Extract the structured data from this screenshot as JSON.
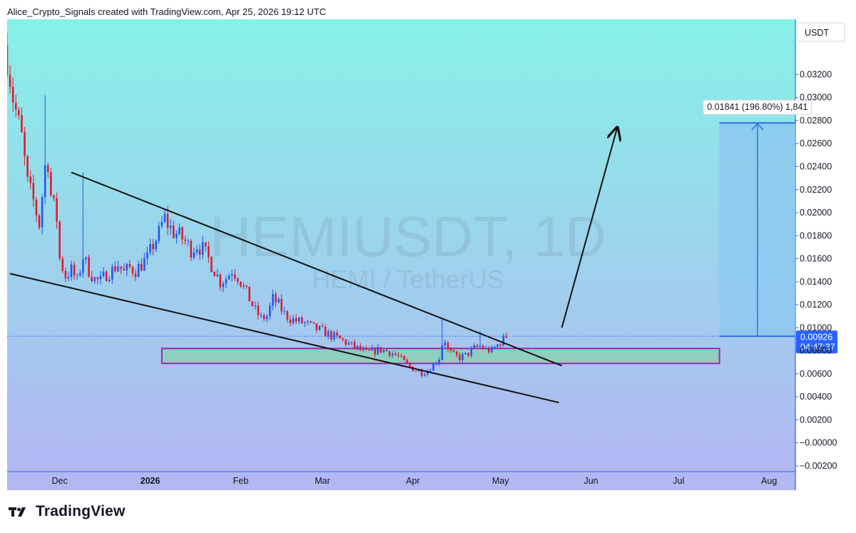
{
  "header": {
    "attribution": "Alice_Crypto_Signals created with TradingView.com, Apr 25, 2026 19:12 UTC"
  },
  "footer": {
    "brand": "TradingView"
  },
  "chart_data": {
    "type": "candlestick",
    "symbol_watermark": "HEMIUSDT, 1D",
    "symbol_subtitle": "HEMI / TetherUS",
    "currency_label": "USDT",
    "price_axis": {
      "ticks": [
        "0.03200",
        "0.03000",
        "0.02800",
        "0.02600",
        "0.02400",
        "0.02200",
        "0.02000",
        "0.01800",
        "0.01600",
        "0.01400",
        "0.01200",
        "0.01000",
        "0.00800",
        "0.00600",
        "0.00400",
        "0.00200",
        "−0.00000",
        "−0.00200"
      ],
      "tick_values": [
        0.032,
        0.03,
        0.028,
        0.026,
        0.024,
        0.022,
        0.02,
        0.018,
        0.016,
        0.014,
        0.012,
        0.01,
        0.008,
        0.006,
        0.004,
        0.002,
        0.0,
        -0.002
      ],
      "ylim": [
        -0.0025,
        0.0368
      ]
    },
    "time_axis": {
      "labels": [
        {
          "text": "Dec",
          "date": "2025-12-01",
          "bold": false
        },
        {
          "text": "2026",
          "date": "2026-01-01",
          "bold": true
        },
        {
          "text": "Feb",
          "date": "2026-02-01",
          "bold": false
        },
        {
          "text": "Mar",
          "date": "2026-03-01",
          "bold": false
        },
        {
          "text": "Apr",
          "date": "2026-04-01",
          "bold": false
        },
        {
          "text": "May",
          "date": "2026-05-01",
          "bold": false
        },
        {
          "text": "Jun",
          "date": "2026-06-01",
          "bold": false
        },
        {
          "text": "Jul",
          "date": "2026-07-01",
          "bold": false
        },
        {
          "text": "Aug",
          "date": "2026-08-01",
          "bold": false
        }
      ],
      "xlim": [
        "2025-11-13",
        "2026-08-10"
      ]
    },
    "last_price": {
      "value": "0.00926",
      "price": 0.00926,
      "countdown": "04:47:37"
    },
    "price_path": [
      [
        "2025-11-13",
        0.0335
      ],
      [
        "2025-11-15",
        0.03
      ],
      [
        "2025-11-18",
        0.0265
      ],
      [
        "2025-11-20",
        0.0225
      ],
      [
        "2025-11-22",
        0.021
      ],
      [
        "2025-11-24",
        0.019
      ],
      [
        "2025-11-26",
        0.024
      ],
      [
        "2025-11-27",
        0.0245
      ],
      [
        "2025-11-28",
        0.0215
      ],
      [
        "2025-11-30",
        0.0195
      ],
      [
        "2025-12-01",
        0.016
      ],
      [
        "2025-12-03",
        0.0145
      ],
      [
        "2025-12-05",
        0.015
      ],
      [
        "2025-12-07",
        0.014
      ],
      [
        "2025-12-09",
        0.0162
      ],
      [
        "2025-12-11",
        0.015
      ],
      [
        "2025-12-13",
        0.0142
      ],
      [
        "2025-12-15",
        0.014
      ],
      [
        "2025-12-17",
        0.0147
      ],
      [
        "2025-12-19",
        0.015
      ],
      [
        "2025-12-21",
        0.0155
      ],
      [
        "2025-12-23",
        0.0148
      ],
      [
        "2025-12-25",
        0.0152
      ],
      [
        "2025-12-27",
        0.015
      ],
      [
        "2025-12-29",
        0.0155
      ],
      [
        "2025-12-31",
        0.016
      ],
      [
        "2026-01-02",
        0.0172
      ],
      [
        "2026-01-04",
        0.0182
      ],
      [
        "2026-01-05",
        0.019
      ],
      [
        "2026-01-06",
        0.0195
      ],
      [
        "2026-01-07",
        0.019
      ],
      [
        "2026-01-09",
        0.0183
      ],
      [
        "2026-01-11",
        0.018
      ],
      [
        "2026-01-13",
        0.0175
      ],
      [
        "2026-01-15",
        0.0168
      ],
      [
        "2026-01-17",
        0.0172
      ],
      [
        "2026-01-19",
        0.0168
      ],
      [
        "2026-01-21",
        0.016
      ],
      [
        "2026-01-23",
        0.015
      ],
      [
        "2026-01-25",
        0.014
      ],
      [
        "2026-01-27",
        0.0143
      ],
      [
        "2026-01-29",
        0.015
      ],
      [
        "2026-01-31",
        0.0145
      ],
      [
        "2026-02-02",
        0.0135
      ],
      [
        "2026-02-04",
        0.0125
      ],
      [
        "2026-02-06",
        0.0115
      ],
      [
        "2026-02-08",
        0.0108
      ],
      [
        "2026-02-10",
        0.011
      ],
      [
        "2026-02-12",
        0.0125
      ],
      [
        "2026-02-14",
        0.012
      ],
      [
        "2026-02-16",
        0.0112
      ],
      [
        "2026-02-18",
        0.0108
      ],
      [
        "2026-02-20",
        0.0106
      ],
      [
        "2026-02-23",
        0.0104
      ],
      [
        "2026-02-26",
        0.01
      ],
      [
        "2026-03-01",
        0.0097
      ],
      [
        "2026-03-04",
        0.0093
      ],
      [
        "2026-03-07",
        0.009
      ],
      [
        "2026-03-10",
        0.0086
      ],
      [
        "2026-03-13",
        0.0082
      ],
      [
        "2026-03-16",
        0.0078
      ],
      [
        "2026-03-19",
        0.008
      ],
      [
        "2026-03-21",
        0.0081
      ],
      [
        "2026-03-24",
        0.0079
      ],
      [
        "2026-03-27",
        0.0075
      ],
      [
        "2026-03-29",
        0.007
      ],
      [
        "2026-03-31",
        0.0066
      ],
      [
        "2026-04-02",
        0.0063
      ],
      [
        "2026-04-04",
        0.0061
      ],
      [
        "2026-04-06",
        0.0063
      ],
      [
        "2026-04-08",
        0.0068
      ],
      [
        "2026-04-10",
        0.0074
      ],
      [
        "2026-04-11",
        0.0086
      ],
      [
        "2026-04-12",
        0.0089
      ],
      [
        "2026-04-13",
        0.008
      ],
      [
        "2026-04-15",
        0.0076
      ],
      [
        "2026-04-17",
        0.0074
      ],
      [
        "2026-04-19",
        0.0076
      ],
      [
        "2026-04-21",
        0.008
      ],
      [
        "2026-04-22",
        0.0082
      ],
      [
        "2026-04-24",
        0.0084
      ],
      [
        "2026-04-26",
        0.0081
      ],
      [
        "2026-04-28",
        0.008
      ],
      [
        "2026-04-30",
        0.0085
      ],
      [
        "2026-05-02",
        0.009
      ],
      [
        "2026-05-03",
        0.00926
      ]
    ],
    "spikes": [
      {
        "date": "2025-11-26",
        "high": 0.0302
      },
      {
        "date": "2025-12-09",
        "high": 0.0235
      },
      {
        "date": "2026-01-06",
        "high": 0.0203
      },
      {
        "date": "2026-02-12",
        "high": 0.0132
      },
      {
        "date": "2026-04-11",
        "high": 0.0108
      },
      {
        "date": "2026-04-24",
        "high": 0.0097
      },
      {
        "date": "2026-05-03",
        "high": 0.0096
      }
    ],
    "drawings": {
      "upper_trendline": {
        "from": [
          "2025-12-05",
          0.0235
        ],
        "to": [
          "2026-05-22",
          0.0067
        ]
      },
      "lower_trendline": {
        "from": [
          "2025-11-14",
          0.0147
        ],
        "to": [
          "2026-05-21",
          0.0035
        ]
      },
      "support_zone": {
        "from_date": "2026-01-05",
        "to_date": "2026-07-15",
        "low": 0.0069,
        "high": 0.0082
      },
      "projection_arrow": {
        "from": [
          "2026-05-22",
          0.01
        ],
        "to": [
          "2026-06-10",
          0.0274
        ]
      },
      "target_box": {
        "from_date": "2026-07-15",
        "to_date": "2026-08-10",
        "low": 0.00926,
        "high": 0.0278
      },
      "measure_label": "0.01841 (196.80%) 1,841"
    }
  },
  "colors": {
    "bg_top": "#86f1e7",
    "bg_bottom": "#b2b7f2",
    "up_candle": "#2155f0",
    "down_candle": "#e2172d",
    "axis_line": "#2962ff",
    "last_price_bg": "#2962ff",
    "zone_fill": "#8ecfc0",
    "zone_border": "#9c27b0",
    "target_fill": "#8cc7ef",
    "target_edge": "#2d6fe8",
    "watermark": "rgba(90,90,115,0.13)"
  }
}
